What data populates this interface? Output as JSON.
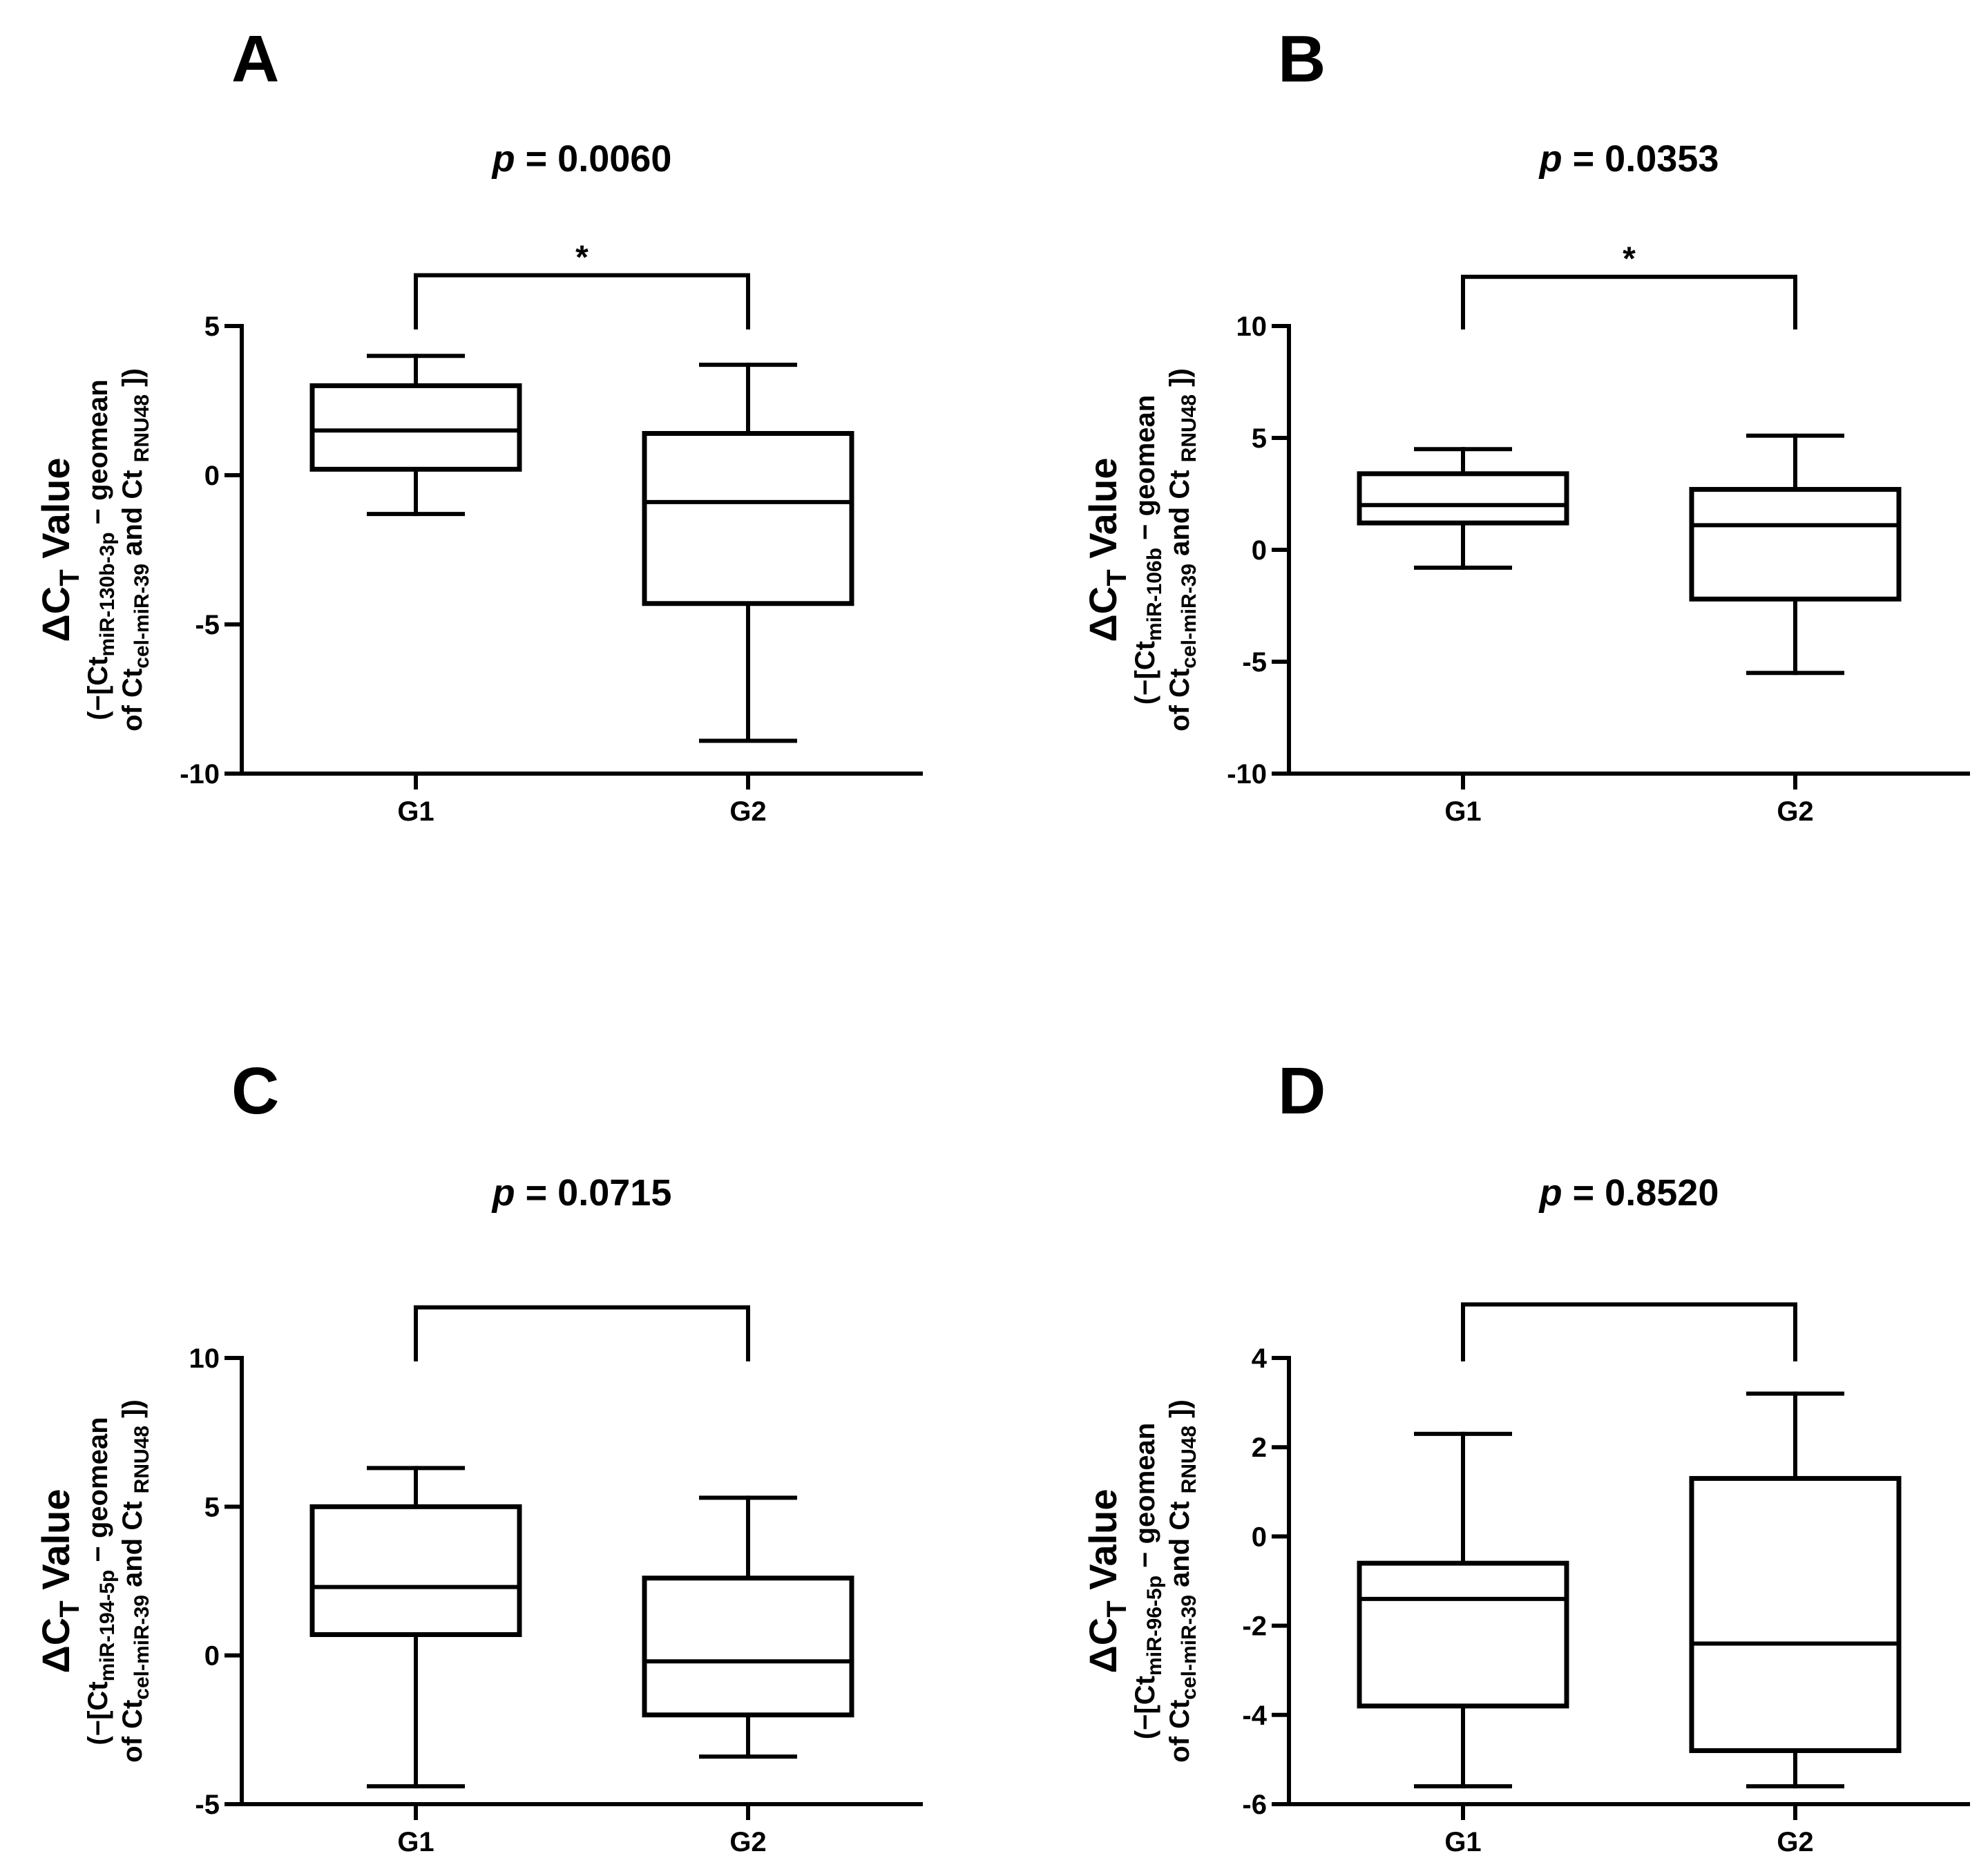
{
  "figure": {
    "title": "",
    "palette": {
      "line": "#000000",
      "background": "#ffffff"
    }
  },
  "chart_data": [
    {
      "panel": "A",
      "type": "box",
      "title_prefix": "p",
      "title_value": "= 0.0060",
      "significance": "*",
      "ylabel": {
        "main": "ΔC",
        "main_sub": "T",
        "main_rest": " Value",
        "line1_a": "(−[Ct",
        "line1_sub": "miR-130b-3p",
        "line1_b": " − geomean",
        "line2_a": "of Ct",
        "line2_sub": "cel-miR-39",
        "line2_b": " and Ct ",
        "line2_sub2": "RNU48",
        "line2_c": " ])"
      },
      "categories": [
        "G1",
        "G2"
      ],
      "ylim": [
        -10,
        5
      ],
      "yticks": [
        5,
        0,
        -5,
        -10
      ],
      "ytick_labels": [
        "5",
        "0",
        "-5",
        "-10"
      ],
      "boxes": [
        {
          "group": "G1",
          "whisker_low": -1.3,
          "q1": 0.2,
          "median": 1.5,
          "q3": 3.0,
          "whisker_high": 4.0
        },
        {
          "group": "G2",
          "whisker_low": -8.9,
          "q1": -4.3,
          "median": -0.9,
          "q3": 1.4,
          "whisker_high": 3.7
        }
      ],
      "bracket_y": 6.7
    },
    {
      "panel": "B",
      "type": "box",
      "title_prefix": "p",
      "title_value": "= 0.0353",
      "significance": "*",
      "ylabel": {
        "main": "ΔC",
        "main_sub": "T",
        "main_rest": " Value",
        "line1_a": "(−[Ct",
        "line1_sub": "miR-106b",
        "line1_b": " − geomean",
        "line2_a": "of Ct",
        "line2_sub": "cel-miR-39",
        "line2_b": " and Ct ",
        "line2_sub2": "RNU48",
        "line2_c": " ])"
      },
      "categories": [
        "G1",
        "G2"
      ],
      "ylim": [
        -10,
        10
      ],
      "yticks": [
        10,
        5,
        0,
        -5,
        -10
      ],
      "ytick_labels": [
        "10",
        "5",
        "0",
        "-5",
        "-10"
      ],
      "boxes": [
        {
          "group": "G1",
          "whisker_low": -0.8,
          "q1": 1.2,
          "median": 2.0,
          "q3": 3.4,
          "whisker_high": 4.5
        },
        {
          "group": "G2",
          "whisker_low": -5.5,
          "q1": -2.2,
          "median": 1.1,
          "q3": 2.7,
          "whisker_high": 5.1
        }
      ],
      "bracket_y": 12.2
    },
    {
      "panel": "C",
      "type": "box",
      "title_prefix": "p",
      "title_value": "= 0.0715",
      "significance": "",
      "ylabel": {
        "main": "ΔC",
        "main_sub": "T",
        "main_rest": " Value",
        "line1_a": "(−[Ct",
        "line1_sub": "miR-194-5p",
        "line1_b": " − geomean",
        "line2_a": "of Ct",
        "line2_sub": "cel-miR-39",
        "line2_b": " and Ct ",
        "line2_sub2": "RNU48",
        "line2_c": " ])"
      },
      "categories": [
        "G1",
        "G2"
      ],
      "ylim": [
        -5,
        10
      ],
      "yticks": [
        10,
        5,
        0,
        -5
      ],
      "ytick_labels": [
        "10",
        "5",
        "0",
        "-5"
      ],
      "boxes": [
        {
          "group": "G1",
          "whisker_low": -4.4,
          "q1": 0.7,
          "median": 2.3,
          "q3": 5.0,
          "whisker_high": 6.3
        },
        {
          "group": "G2",
          "whisker_low": -3.4,
          "q1": -2.0,
          "median": -0.2,
          "q3": 2.6,
          "whisker_high": 5.3
        }
      ],
      "bracket_y": 11.7
    },
    {
      "panel": "D",
      "type": "box",
      "title_prefix": "p",
      "title_value": "= 0.8520",
      "significance": "",
      "ylabel": {
        "main": "ΔC",
        "main_sub": "T",
        "main_rest": " Value",
        "line1_a": "(−[Ct",
        "line1_sub": "miR-96-5p",
        "line1_b": " − geomean",
        "line2_a": "of Ct",
        "line2_sub": "cel-miR-39",
        "line2_b": " and Ct ",
        "line2_sub2": "RNU48",
        "line2_c": " ])"
      },
      "categories": [
        "G1",
        "G2"
      ],
      "ylim": [
        -6,
        4
      ],
      "yticks": [
        4,
        2,
        0,
        -2,
        -4,
        -6
      ],
      "ytick_labels": [
        "4",
        "2",
        "0",
        "-2",
        "-4",
        "-6"
      ],
      "boxes": [
        {
          "group": "G1",
          "whisker_low": -5.6,
          "q1": -3.8,
          "median": -1.4,
          "q3": -0.6,
          "whisker_high": 2.3
        },
        {
          "group": "G2",
          "whisker_low": -5.6,
          "q1": -4.8,
          "median": -2.4,
          "q3": 1.3,
          "whisker_high": 3.2
        }
      ],
      "bracket_y": 5.2
    }
  ]
}
